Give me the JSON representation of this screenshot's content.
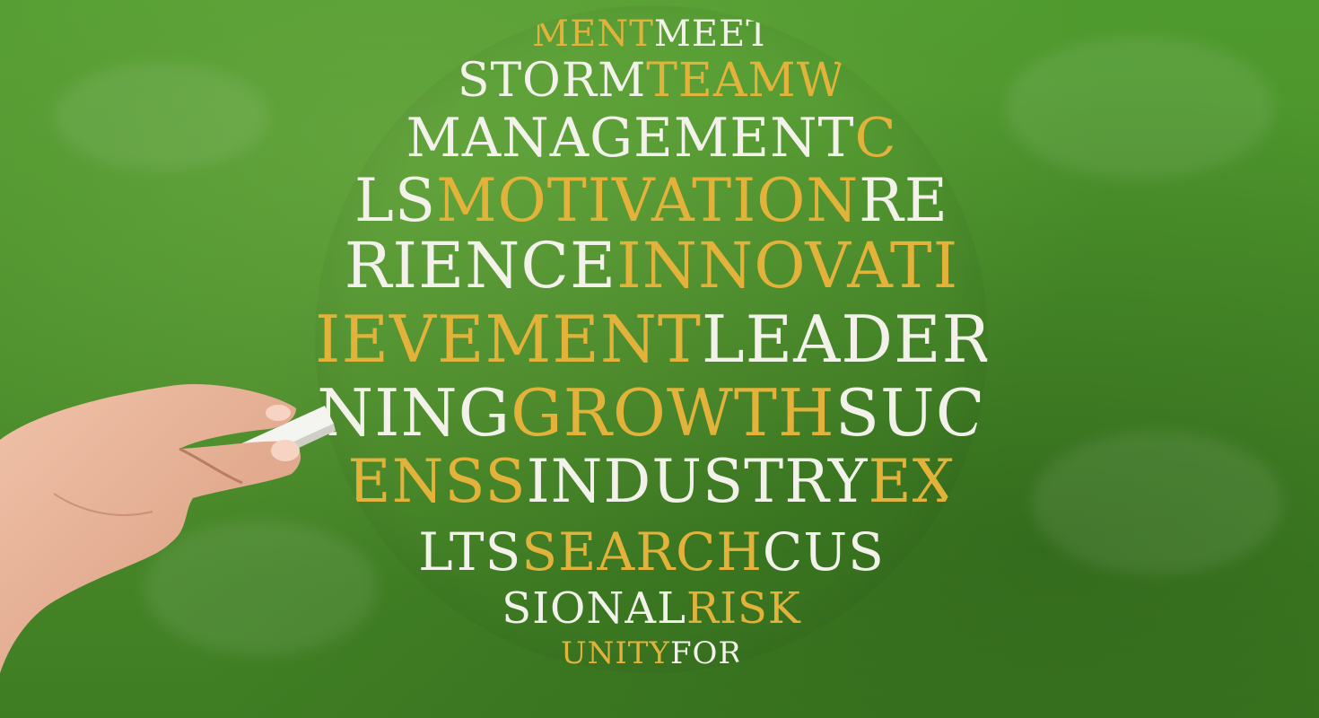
{
  "image": {
    "colors": {
      "chalkboard": "#4f8e2c",
      "white_chalk": "#f2f2ea",
      "gold_chalk": "#e3b23b",
      "skin": "#e8b49a"
    },
    "sphere_words": [
      {
        "text": "TEAMW",
        "tone": "gold"
      },
      {
        "text": "MANAGEMENT",
        "tone": "white"
      },
      {
        "text": "MOTIVATION",
        "tone": "gold"
      },
      {
        "text": "INNOVATI",
        "tone": "gold"
      },
      {
        "text": "LEADERS",
        "tone": "white"
      },
      {
        "text": "GROWTH",
        "tone": "gold"
      },
      {
        "text": "INDUSTRY",
        "tone": "white"
      },
      {
        "text": "SEARCH",
        "tone": "gold"
      },
      {
        "text": "RISK",
        "tone": "gold"
      }
    ],
    "rows": [
      {
        "y": 12,
        "size": 40,
        "parts": [
          [
            "MENT",
            "gold"
          ],
          [
            "MEET",
            "white"
          ]
        ]
      },
      {
        "y": 58,
        "size": 52,
        "parts": [
          [
            "STORM",
            "white"
          ],
          [
            "TEAMW",
            "gold"
          ]
        ]
      },
      {
        "y": 118,
        "size": 60,
        "parts": [
          [
            "MANAGEMENT",
            "white"
          ],
          [
            "C",
            "gold"
          ]
        ]
      },
      {
        "y": 185,
        "size": 66,
        "parts": [
          [
            "LS",
            "white"
          ],
          [
            "MOTIVATION",
            "gold"
          ],
          [
            "RE",
            "white"
          ]
        ]
      },
      {
        "y": 255,
        "size": 70,
        "parts": [
          [
            "RIENCE",
            "white"
          ],
          [
            "INNOVATI",
            "gold"
          ]
        ]
      },
      {
        "y": 336,
        "size": 72,
        "parts": [
          [
            "IEVEMENT",
            "gold"
          ],
          [
            "LEADERS",
            "white"
          ]
        ]
      },
      {
        "y": 418,
        "size": 72,
        "parts": [
          [
            "NING",
            "white"
          ],
          [
            "GROWTH",
            "gold"
          ],
          [
            "SUC",
            "white"
          ]
        ]
      },
      {
        "y": 498,
        "size": 66,
        "parts": [
          [
            "ENSS",
            "gold"
          ],
          [
            "INDUSTRY",
            "white"
          ],
          [
            "EX",
            "gold"
          ]
        ]
      },
      {
        "y": 580,
        "size": 58,
        "parts": [
          [
            "LTS",
            "white"
          ],
          [
            "SEARCH",
            "gold"
          ],
          [
            "CUS",
            "white"
          ]
        ]
      },
      {
        "y": 648,
        "size": 48,
        "parts": [
          [
            "SIONAL",
            "white"
          ],
          [
            "RISK",
            "gold"
          ]
        ]
      },
      {
        "y": 705,
        "size": 34,
        "parts": [
          [
            "UNITY",
            "gold"
          ],
          [
            "FOR",
            "white"
          ]
        ]
      }
    ]
  }
}
